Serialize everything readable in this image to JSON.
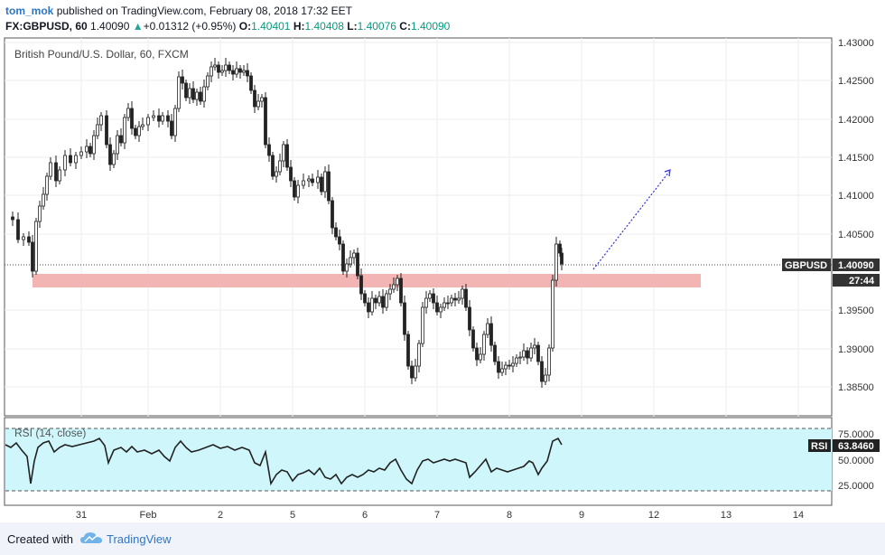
{
  "header": {
    "author": "tom_mok",
    "published_text": "published on TradingView.com, February 08, 2018 17:32 EET",
    "symbol": "FX:GBPUSD, 60",
    "last": "1.40090",
    "change": "+0.01312 (+0.95%)",
    "o_label": "O:",
    "o_value": "1.40401",
    "h_label": "H:",
    "h_value": "1.40408",
    "l_label": "L:",
    "l_value": "1.40076",
    "c_label": "C:",
    "c_value": "1.40090",
    "up_arrow": "▲"
  },
  "chart": {
    "title": "British Pound/U.S. Dollar, 60, FXCM",
    "price_ticks": [
      "1.43000",
      "1.42500",
      "1.42000",
      "1.41500",
      "1.41000",
      "1.40500",
      "1.39500",
      "1.39000",
      "1.38500"
    ],
    "time_ticks": [
      "31",
      "Feb",
      "2",
      "5",
      "6",
      "7",
      "8",
      "9",
      "12",
      "13",
      "14"
    ],
    "symbol_tag": "GBPUSD",
    "last_price_tag": "1.40090",
    "countdown_tag": "27:44",
    "colors": {
      "rsi_fill": "#cff7fb",
      "zone": "#f3b4b4",
      "arrow": "#3030d8",
      "text": "#131722"
    }
  },
  "rsi": {
    "label": "RSI (14, close)",
    "ticks": [
      "75.0000",
      "50.0000",
      "25.0000"
    ],
    "tag_name": "RSI",
    "tag_value": "63.8460"
  },
  "footer": {
    "created_with": "Created with",
    "brand": "TradingView",
    "logo_icon": "cloud-logo-icon"
  }
}
